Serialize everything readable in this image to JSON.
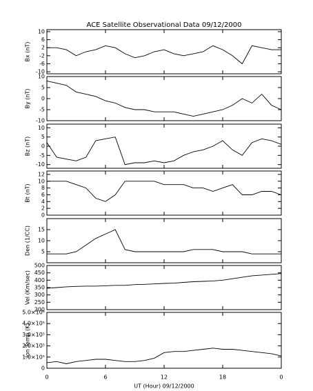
{
  "chart_data": [
    {
      "type": "line",
      "title": "ACE Satellite Observational Data  09/12/2000",
      "ylabel": "Bx (nT)",
      "x": [
        0,
        1,
        2,
        3,
        4,
        5,
        6,
        7,
        8,
        9,
        10,
        11,
        12,
        13,
        14,
        15,
        16,
        17,
        18,
        19,
        20,
        21,
        22,
        23,
        24
      ],
      "values": [
        2,
        2,
        1,
        -2,
        0,
        1,
        3,
        2,
        -1,
        -3,
        -2,
        0,
        1,
        -1,
        -2,
        -1,
        0,
        3,
        1,
        -2,
        -6,
        3,
        2,
        1,
        1
      ],
      "xlim": [
        0,
        24
      ],
      "xticks": [
        0,
        6,
        12,
        18,
        {
          "value": 24,
          "label": "0"
        }
      ],
      "ylim": [
        -11,
        11
      ],
      "yticks": [
        10,
        6,
        2,
        -2,
        -6,
        -10
      ],
      "color": "#000000"
    },
    {
      "type": "line",
      "ylabel": "By (nT)",
      "x": [
        0,
        1,
        2,
        3,
        4,
        5,
        6,
        7,
        8,
        9,
        10,
        11,
        12,
        13,
        14,
        15,
        16,
        17,
        18,
        19,
        20,
        21,
        22,
        23,
        24
      ],
      "values": [
        8,
        7,
        6,
        3,
        2,
        1,
        -1,
        -2,
        -4,
        -5,
        -5,
        -6,
        -6,
        -6,
        -7,
        -8,
        -7,
        -6,
        -5,
        -3,
        0,
        -2,
        2,
        -3,
        -5
      ],
      "xlim": [
        0,
        24
      ],
      "xticks": [
        0,
        6,
        12,
        18,
        {
          "value": 24,
          "label": "0"
        }
      ],
      "ylim": [
        -10,
        10
      ],
      "yticks": [
        10,
        5,
        0,
        -5,
        -10
      ],
      "color": "#000000"
    },
    {
      "type": "line",
      "ylabel": "Bz (nT)",
      "x": [
        0,
        1,
        2,
        3,
        4,
        5,
        6,
        7,
        8,
        9,
        10,
        11,
        12,
        13,
        14,
        15,
        16,
        17,
        18,
        19,
        20,
        21,
        22,
        23,
        24
      ],
      "values": [
        2,
        -6,
        -7,
        -8,
        -6,
        3,
        4,
        5,
        -10,
        -9,
        -9,
        -8,
        -9,
        -8,
        -5,
        -3,
        -2,
        0,
        3,
        -2,
        -5,
        2,
        4,
        3,
        1
      ],
      "xlim": [
        0,
        24
      ],
      "xticks": [
        0,
        6,
        12,
        18,
        {
          "value": 24,
          "label": "0"
        }
      ],
      "ylim": [
        -12,
        12
      ],
      "yticks": [
        10,
        5,
        0,
        -5,
        -10
      ],
      "color": "#000000"
    },
    {
      "type": "line",
      "ylabel": "Bt (nT)",
      "x": [
        0,
        1,
        2,
        3,
        4,
        5,
        6,
        7,
        8,
        9,
        10,
        11,
        12,
        13,
        14,
        15,
        16,
        17,
        18,
        19,
        20,
        21,
        22,
        23,
        24
      ],
      "values": [
        10,
        10,
        10,
        9,
        8,
        5,
        4,
        6,
        10,
        10,
        10,
        10,
        9,
        9,
        9,
        8,
        8,
        7,
        8,
        9,
        6,
        6,
        7,
        7,
        6
      ],
      "xlim": [
        0,
        24
      ],
      "xticks": [
        0,
        6,
        12,
        18,
        {
          "value": 24,
          "label": "0"
        }
      ],
      "ylim": [
        0,
        13
      ],
      "yticks": [
        12,
        10,
        8,
        6,
        4,
        2,
        0
      ],
      "color": "#000000"
    },
    {
      "type": "line",
      "ylabel": "Den (1/CC)",
      "x": [
        0,
        1,
        2,
        3,
        4,
        5,
        6,
        7,
        8,
        9,
        10,
        11,
        12,
        13,
        14,
        15,
        16,
        17,
        18,
        19,
        20,
        21,
        22,
        23,
        24
      ],
      "values": [
        4,
        4,
        4,
        5,
        8,
        11,
        13,
        15,
        6,
        5,
        5,
        5,
        5,
        5,
        5,
        6,
        6,
        6,
        5,
        5,
        5,
        4,
        4,
        4,
        4
      ],
      "xlim": [
        0,
        24
      ],
      "xticks": [
        0,
        6,
        12,
        18,
        {
          "value": 24,
          "label": "0"
        }
      ],
      "ylim": [
        0,
        20
      ],
      "yticks": [
        15,
        10,
        5
      ],
      "color": "#000000"
    },
    {
      "type": "line",
      "ylabel": "Vel (Km/sec)",
      "x": [
        0,
        1,
        2,
        3,
        4,
        5,
        6,
        7,
        8,
        9,
        10,
        11,
        12,
        13,
        14,
        15,
        16,
        17,
        18,
        19,
        20,
        21,
        22,
        23,
        24
      ],
      "values": [
        345,
        350,
        355,
        358,
        360,
        360,
        362,
        365,
        365,
        370,
        372,
        375,
        378,
        380,
        385,
        390,
        392,
        395,
        400,
        410,
        420,
        430,
        435,
        440,
        445
      ],
      "xlim": [
        0,
        24
      ],
      "xticks": [
        0,
        6,
        12,
        18,
        {
          "value": 24,
          "label": "0"
        }
      ],
      "ylim": [
        200,
        500
      ],
      "yticks": [
        500,
        450,
        400,
        350,
        300,
        250,
        200
      ],
      "color": "#000000"
    },
    {
      "type": "line",
      "ylabel": "Ion Temp (K)",
      "xlabel": "UT (Hour)  09/12/2000",
      "x": [
        0,
        1,
        2,
        3,
        4,
        5,
        6,
        7,
        8,
        9,
        10,
        11,
        12,
        13,
        14,
        15,
        16,
        17,
        18,
        19,
        20,
        21,
        22,
        23,
        24
      ],
      "values": [
        50000,
        60000,
        40000,
        60000,
        70000,
        80000,
        80000,
        70000,
        60000,
        60000,
        70000,
        90000,
        140000,
        150000,
        150000,
        160000,
        170000,
        180000,
        170000,
        170000,
        160000,
        150000,
        140000,
        130000,
        110000
      ],
      "xlim": [
        0,
        24
      ],
      "xticks": [
        0,
        6,
        12,
        18,
        {
          "value": 24,
          "label": "0"
        }
      ],
      "ylim": [
        0,
        500000
      ],
      "yticks": [
        {
          "value": 500000,
          "label": "5.0×10⁵"
        },
        {
          "value": 400000,
          "label": "4.0×10⁵"
        },
        {
          "value": 300000,
          "label": "3.0×10⁵"
        },
        {
          "value": 200000,
          "label": "2.0×10⁵"
        },
        {
          "value": 100000,
          "label": "1.0×10⁵"
        },
        0
      ],
      "color": "#000000"
    }
  ]
}
